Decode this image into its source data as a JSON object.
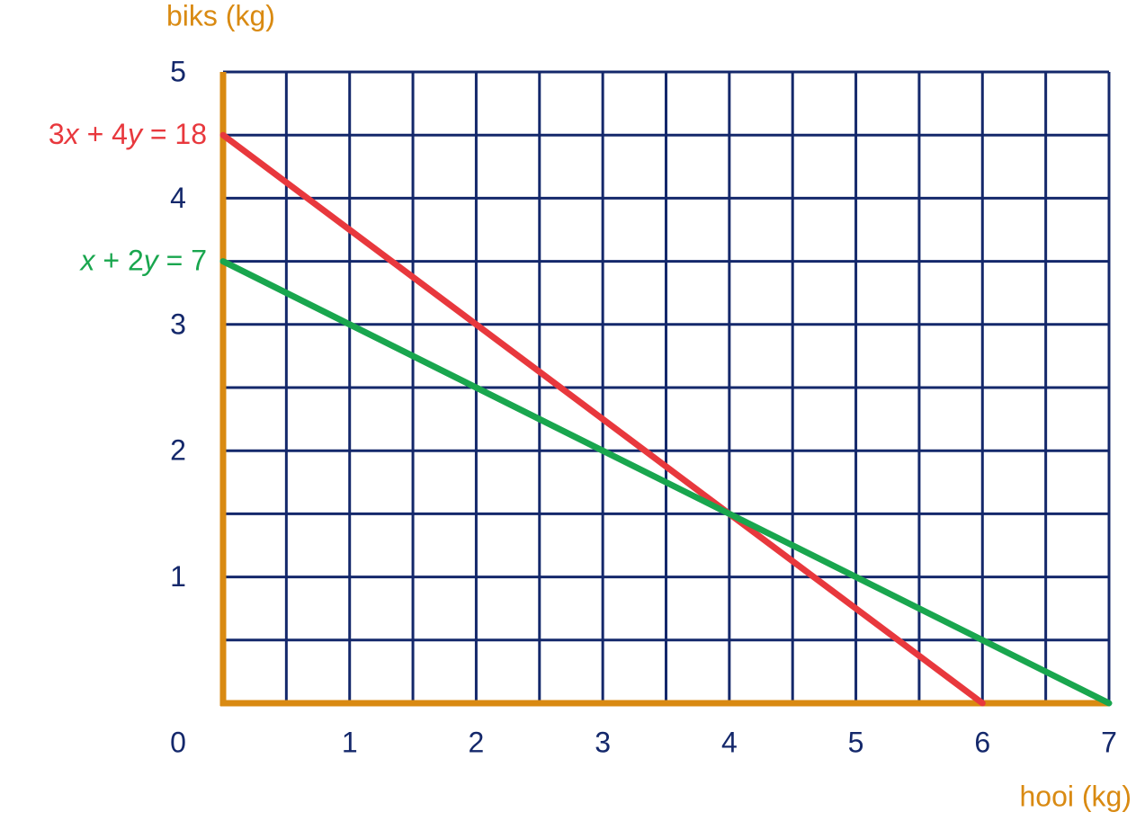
{
  "chart_data": {
    "type": "line",
    "x_label": "hooi (kg)",
    "y_label": "biks (kg)",
    "xlim": [
      0,
      7
    ],
    "ylim": [
      0,
      5
    ],
    "xticks": [
      0,
      1,
      2,
      3,
      4,
      5,
      6,
      7
    ],
    "yticks": [
      1,
      2,
      3,
      4,
      5
    ],
    "grid": true,
    "minor_grid": true,
    "grid_color": "#14286b",
    "axis_color": "#d98a12",
    "tick_color": "#14286b",
    "series": [
      {
        "name": "3x + 4y = 18",
        "color": "#e8383d",
        "x": [
          0,
          6
        ],
        "values": [
          4.5,
          0
        ]
      },
      {
        "name": "x + 2y = 7",
        "color": "#19a64e",
        "x": [
          0,
          7
        ],
        "values": [
          3.5,
          0
        ]
      }
    ]
  }
}
